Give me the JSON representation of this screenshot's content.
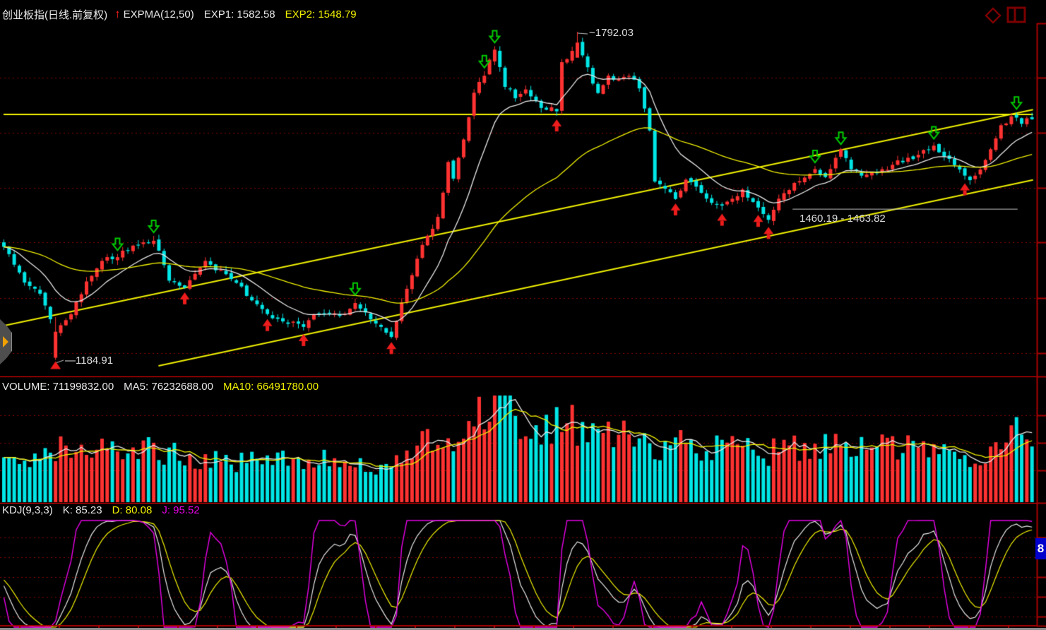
{
  "header": {
    "symbol": "创业板指(日线.前复权)",
    "arrow": "↑",
    "indicator": "EXPMA(12,50)",
    "exp1_label": "EXP1: 1582.58",
    "exp2_label": "EXP2: 1548.79"
  },
  "volume_header": {
    "volume": "VOLUME: 71199832.00",
    "ma5": "MA5: 76232688.00",
    "ma10": "MA10: 66491780.00"
  },
  "kdj_header": {
    "name": "KDJ(9,3,3)",
    "k": "K: 85.23",
    "d": "D: 80.08",
    "j": "J: 95.52"
  },
  "annotations": {
    "high": "~1792.03",
    "low": "—1184.91",
    "gap": "1460.19 - 1463.82",
    "scale_label": "8"
  },
  "colors": {
    "background": "#000000",
    "up": "#ff3232",
    "down": "#00e6e6",
    "line_white": "#e8e8e8",
    "line_yellow": "#f0f000",
    "line_magenta": "#e800e8",
    "grid_dotted": "#8b0000",
    "separator": "#ff0000",
    "axis": "#aa0000",
    "buy_marker": "#ee1c1c",
    "sell_marker": "#00cc00",
    "gap_line": "#c8c8c8",
    "scale_label_bg": "#0000cc",
    "icon_dark_red": "#7b0000"
  },
  "chart_data": {
    "type": "candlestick",
    "title": "创业板指 日线 前复权 EXPMA(12,50)",
    "panels": [
      "price",
      "volume",
      "kdj"
    ],
    "n": 200,
    "seed": 11,
    "price_axis_range": [
      1155.6,
      1807.7
    ],
    "gridline_prices": [
      1707,
      1605,
      1503,
      1402,
      1300,
      1198
    ],
    "close_anchors": [
      [
        0,
        1394
      ],
      [
        4,
        1329
      ],
      [
        7,
        1309
      ],
      [
        10,
        1237
      ],
      [
        13,
        1270
      ],
      [
        16,
        1329
      ],
      [
        19,
        1368
      ],
      [
        22,
        1378
      ],
      [
        26,
        1400
      ],
      [
        29,
        1409
      ],
      [
        32,
        1335
      ],
      [
        35,
        1318
      ],
      [
        39,
        1365
      ],
      [
        42,
        1348
      ],
      [
        45,
        1328
      ],
      [
        48,
        1296
      ],
      [
        51,
        1270
      ],
      [
        54,
        1257
      ],
      [
        58,
        1248
      ],
      [
        61,
        1274
      ],
      [
        65,
        1266
      ],
      [
        68,
        1287
      ],
      [
        71,
        1263
      ],
      [
        75,
        1231
      ],
      [
        77,
        1289
      ],
      [
        79,
        1342
      ],
      [
        81,
        1400
      ],
      [
        84,
        1446
      ],
      [
        86,
        1550
      ],
      [
        87,
        1518
      ],
      [
        89,
        1596
      ],
      [
        91,
        1681
      ],
      [
        93,
        1714
      ],
      [
        95,
        1759
      ],
      [
        97,
        1694
      ],
      [
        99,
        1668
      ],
      [
        101,
        1688
      ],
      [
        104,
        1655
      ],
      [
        107,
        1648
      ],
      [
        108,
        1733
      ],
      [
        111,
        1772
      ],
      [
        113,
        1727
      ],
      [
        115,
        1674
      ],
      [
        117,
        1714
      ],
      [
        119,
        1701
      ],
      [
        121,
        1714
      ],
      [
        123,
        1688
      ],
      [
        125,
        1609
      ],
      [
        126,
        1518
      ],
      [
        129,
        1498
      ],
      [
        130,
        1479
      ],
      [
        132,
        1518
      ],
      [
        135,
        1498
      ],
      [
        137,
        1475
      ],
      [
        139,
        1466
      ],
      [
        141,
        1485
      ],
      [
        143,
        1496
      ],
      [
        146,
        1470
      ],
      [
        148,
        1446
      ],
      [
        150,
        1479
      ],
      [
        152,
        1501
      ],
      [
        155,
        1522
      ],
      [
        157,
        1537
      ],
      [
        159,
        1527
      ],
      [
        162,
        1570
      ],
      [
        164,
        1540
      ],
      [
        166,
        1522
      ],
      [
        169,
        1530
      ],
      [
        171,
        1540
      ],
      [
        173,
        1550
      ],
      [
        176,
        1561
      ],
      [
        178,
        1570
      ],
      [
        180,
        1579
      ],
      [
        183,
        1557
      ],
      [
        185,
        1535
      ],
      [
        187,
        1518
      ],
      [
        189,
        1537
      ],
      [
        191,
        1570
      ],
      [
        193,
        1616
      ],
      [
        195,
        1636
      ],
      [
        197,
        1622
      ],
      [
        199,
        1635
      ]
    ],
    "low_point": {
      "index": 10,
      "price": 1184.91
    },
    "high_point": {
      "index": 111,
      "price": 1792.03
    },
    "ema_periods": [
      12,
      50
    ],
    "exp1": 1582.58,
    "exp2": 1548.79,
    "trendlines": [
      {
        "name": "horizontal-resistance",
        "i1": 0,
        "p1": 1639,
        "i2": 199,
        "p2": 1639
      },
      {
        "name": "channel-upper",
        "i1": 0,
        "p1": 1248,
        "i2": 199,
        "p2": 1648
      },
      {
        "name": "channel-lower",
        "i1": 30,
        "p1": 1174,
        "i2": 199,
        "p2": 1518
      }
    ],
    "gap_line": {
      "price": 1463.82,
      "i1": 153,
      "i2": 196
    },
    "markers": {
      "buy": [
        35,
        51,
        58,
        75,
        107,
        130,
        139,
        146,
        148,
        186
      ],
      "sell": [
        22,
        29,
        68,
        93,
        95,
        157,
        162,
        180,
        196
      ]
    },
    "volume": {
      "current": 71199832,
      "ma5": 76232688,
      "ma10": 66491780,
      "rel_anchors": [
        [
          0,
          0.4
        ],
        [
          6,
          0.36
        ],
        [
          10,
          0.5
        ],
        [
          14,
          0.44
        ],
        [
          18,
          0.48
        ],
        [
          22,
          0.52
        ],
        [
          26,
          0.56
        ],
        [
          29,
          0.5
        ],
        [
          33,
          0.44
        ],
        [
          38,
          0.4
        ],
        [
          44,
          0.36
        ],
        [
          50,
          0.4
        ],
        [
          55,
          0.44
        ],
        [
          60,
          0.4
        ],
        [
          65,
          0.37
        ],
        [
          70,
          0.35
        ],
        [
          75,
          0.36
        ],
        [
          79,
          0.46
        ],
        [
          83,
          0.6
        ],
        [
          86,
          0.56
        ],
        [
          89,
          0.7
        ],
        [
          92,
          0.86
        ],
        [
          94,
          0.94
        ],
        [
          96,
          1.0
        ],
        [
          98,
          0.82
        ],
        [
          100,
          0.74
        ],
        [
          103,
          0.64
        ],
        [
          106,
          0.72
        ],
        [
          109,
          0.78
        ],
        [
          112,
          0.7
        ],
        [
          115,
          0.62
        ],
        [
          118,
          0.64
        ],
        [
          121,
          0.6
        ],
        [
          124,
          0.56
        ],
        [
          127,
          0.5
        ],
        [
          130,
          0.56
        ],
        [
          134,
          0.5
        ],
        [
          138,
          0.52
        ],
        [
          142,
          0.5
        ],
        [
          146,
          0.46
        ],
        [
          150,
          0.48
        ],
        [
          154,
          0.52
        ],
        [
          158,
          0.5
        ],
        [
          162,
          0.58
        ],
        [
          166,
          0.52
        ],
        [
          170,
          0.5
        ],
        [
          174,
          0.54
        ],
        [
          178,
          0.48
        ],
        [
          182,
          0.44
        ],
        [
          186,
          0.42
        ],
        [
          190,
          0.4
        ],
        [
          193,
          0.5
        ],
        [
          196,
          0.64
        ],
        [
          199,
          0.58
        ]
      ]
    },
    "kdj": {
      "params": [
        9,
        3,
        3
      ],
      "k": 85.23,
      "d": 80.08,
      "j": 95.52,
      "gridline_values": [
        80,
        65,
        50,
        35,
        20
      ]
    }
  }
}
